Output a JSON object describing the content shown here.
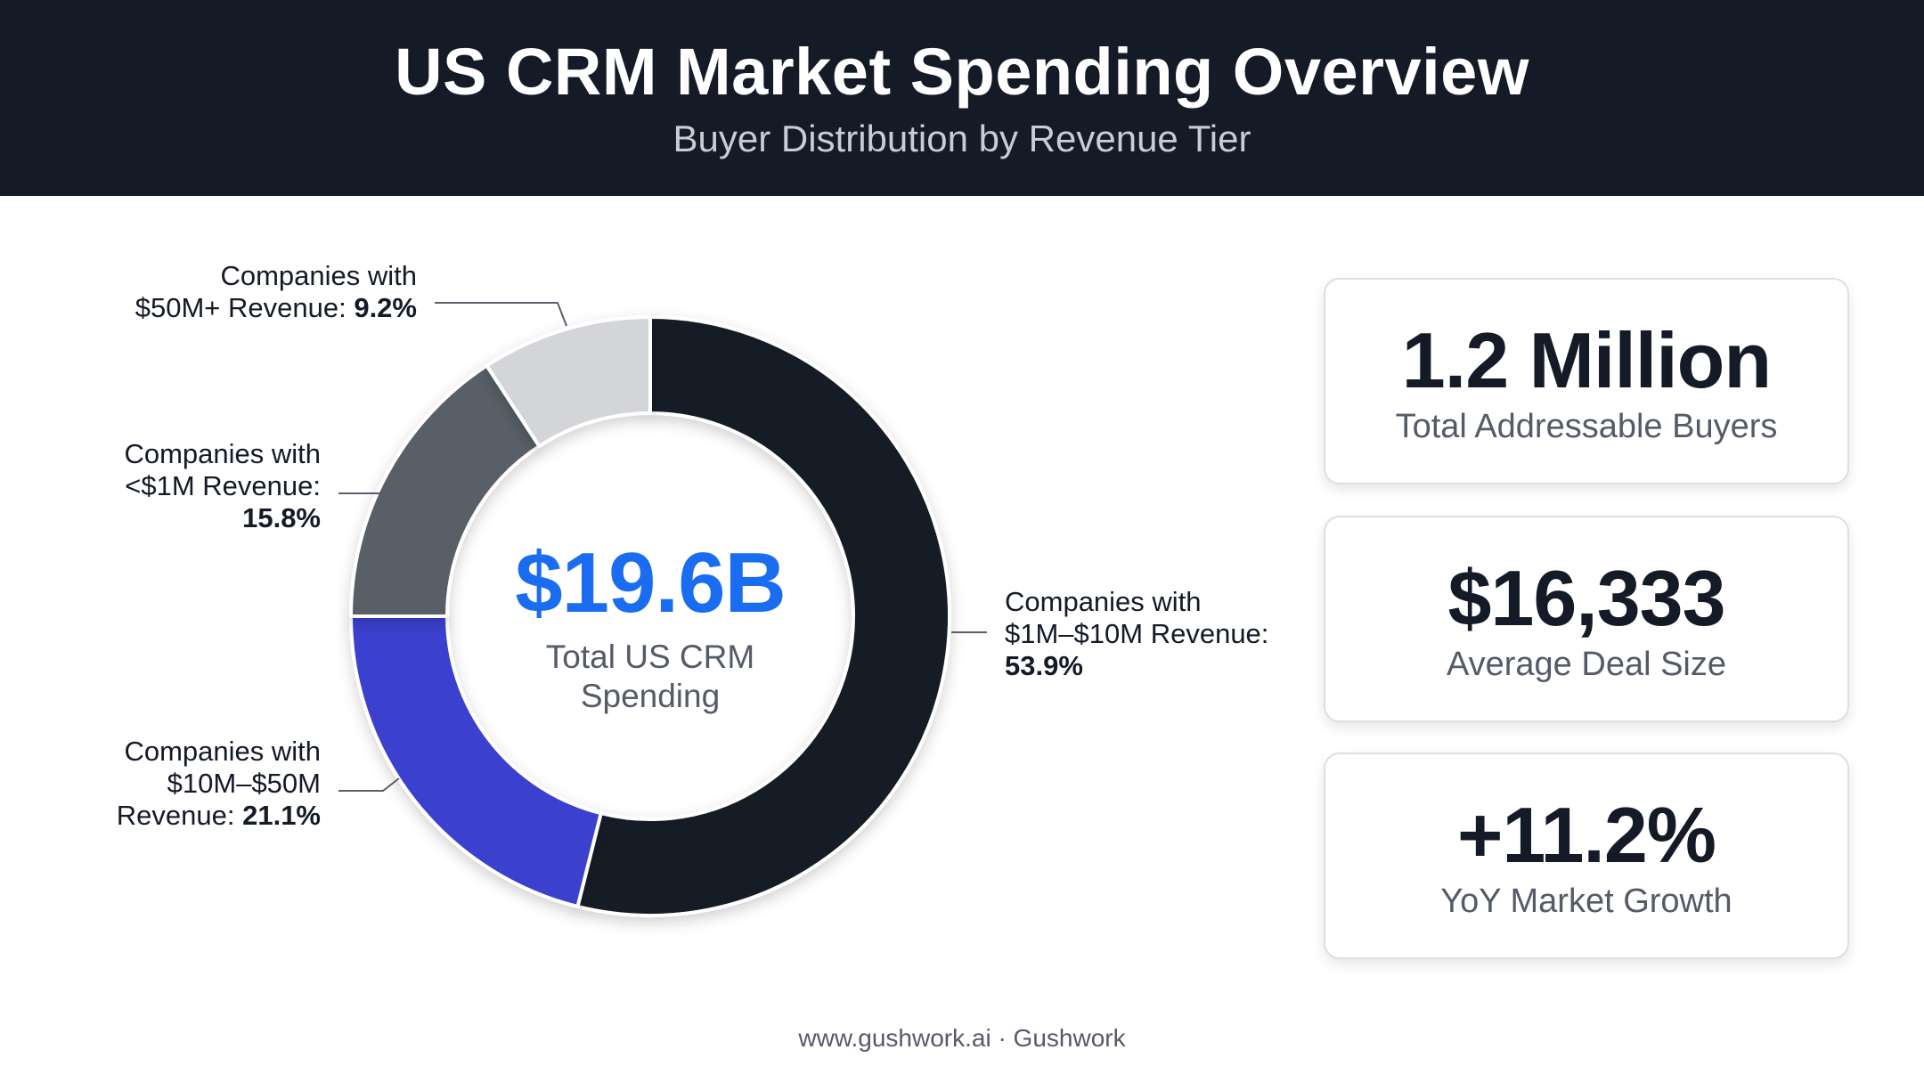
{
  "header": {
    "title": "US CRM Market Spending Overview",
    "subtitle": "Buyer Distribution by Revenue Tier"
  },
  "chart_data": {
    "type": "pie",
    "variant": "donut",
    "center": {
      "value": "$19.6B",
      "label_line1": "Total US CRM",
      "label_line2": "Spending"
    },
    "slices": [
      {
        "label_lines": [
          "Companies with",
          "$1M–$10M Revenue:"
        ],
        "value_text": "53.9%",
        "value": 53.9,
        "color": "#141a26"
      },
      {
        "label_lines": [
          "Companies with",
          "$10M–$50M",
          "Revenue:"
        ],
        "value_text": "21.1%",
        "value": 21.1,
        "color": "#3a3fcf"
      },
      {
        "label_lines": [
          "Companies with",
          "<$1M Revenue:"
        ],
        "value_text": "15.8%",
        "value": 15.8,
        "color": "#595e66"
      },
      {
        "label_lines": [
          "Companies with",
          "$50M+ Revenue:"
        ],
        "value_text": "9.2%",
        "value": 9.2,
        "color": "#d3d5d9"
      }
    ]
  },
  "stats": [
    {
      "value": "1.2 Million",
      "label": "Total Addressable Buyers"
    },
    {
      "value": "$16,333",
      "label": "Average Deal Size"
    },
    {
      "value": "+11.2%",
      "label": "YoY Market Growth"
    }
  ],
  "footer": {
    "text": "www.gushwork.ai · Gushwork"
  },
  "colors": {
    "header_bg": "#141a26",
    "accent": "#1a6cf0"
  }
}
